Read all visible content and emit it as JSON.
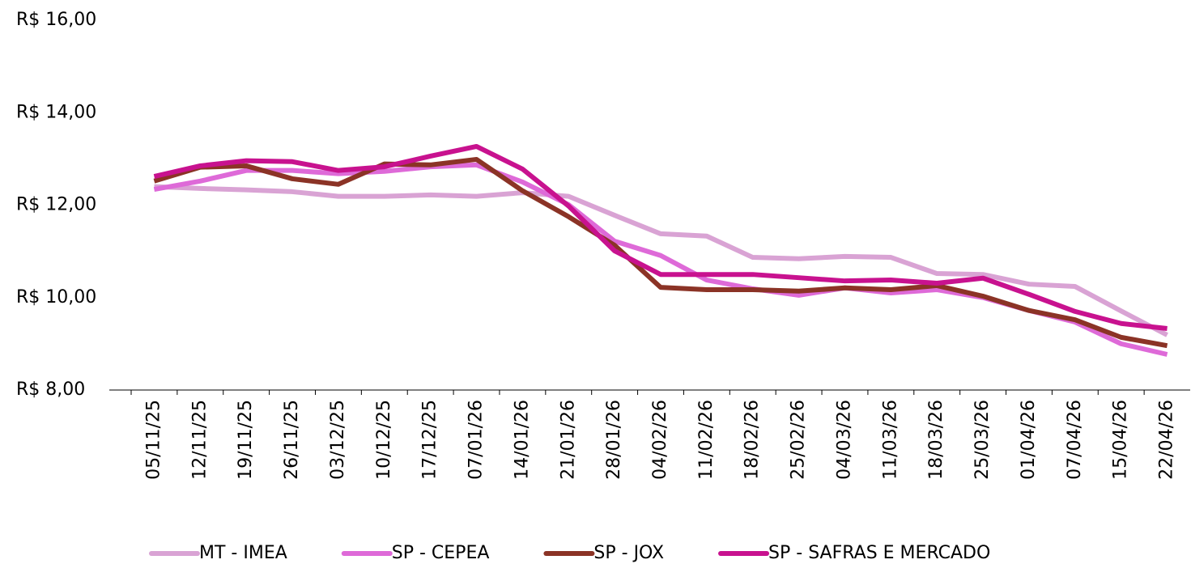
{
  "chart_data": {
    "type": "line",
    "categories": [
      "05/11/25",
      "12/11/25",
      "19/11/25",
      "26/11/25",
      "03/12/25",
      "10/12/25",
      "17/12/25",
      "07/01/26",
      "14/01/26",
      "21/01/26",
      "28/01/26",
      "04/02/26",
      "11/02/26",
      "18/02/26",
      "25/02/26",
      "04/03/26",
      "11/03/26",
      "18/03/26",
      "25/03/26",
      "01/04/26",
      "07/04/26",
      "15/04/26",
      "22/04/26"
    ],
    "series": [
      {
        "name": "MT - IMEA",
        "color": "#d9a3d4",
        "values": [
          12.4,
          12.36,
          12.33,
          12.29,
          12.19,
          12.19,
          12.22,
          12.19,
          12.27,
          12.19,
          11.78,
          11.38,
          11.33,
          10.87,
          10.84,
          10.89,
          10.87,
          10.52,
          10.5,
          10.29,
          10.24,
          9.71,
          9.19
        ]
      },
      {
        "name": "SP - CEPEA",
        "color": "#de6ad8",
        "values": [
          12.34,
          12.52,
          12.75,
          12.75,
          12.68,
          12.73,
          12.83,
          12.87,
          12.5,
          12.01,
          11.22,
          10.91,
          10.38,
          10.19,
          10.05,
          10.21,
          10.1,
          10.17,
          10.0,
          9.72,
          9.47,
          9.0,
          8.77
        ]
      },
      {
        "name": "SP - JOX",
        "color": "#8b3326",
        "values": [
          12.52,
          12.82,
          12.85,
          12.57,
          12.45,
          12.89,
          12.87,
          12.99,
          12.31,
          11.75,
          11.13,
          10.22,
          10.17,
          10.17,
          10.14,
          10.21,
          10.17,
          10.26,
          10.03,
          9.72,
          9.52,
          9.14,
          8.96
        ]
      },
      {
        "name": "SP - SAFRAS E MERCADO",
        "color": "#c8128f",
        "values": [
          12.62,
          12.85,
          12.96,
          12.94,
          12.75,
          12.83,
          13.06,
          13.27,
          12.78,
          11.98,
          11.01,
          10.5,
          10.5,
          10.5,
          10.43,
          10.36,
          10.38,
          10.31,
          10.42,
          10.07,
          9.7,
          9.44,
          9.33
        ]
      }
    ],
    "ylim": [
      8,
      16
    ],
    "yticks": [
      {
        "value": 8,
        "label": "R$ 8,00"
      },
      {
        "value": 10,
        "label": "R$ 10,00"
      },
      {
        "value": 12,
        "label": "R$ 12,00"
      },
      {
        "value": 14,
        "label": "R$ 14,00"
      },
      {
        "value": 16,
        "label": "R$ 16,00"
      }
    ],
    "grid": false,
    "legend": "bottom"
  }
}
